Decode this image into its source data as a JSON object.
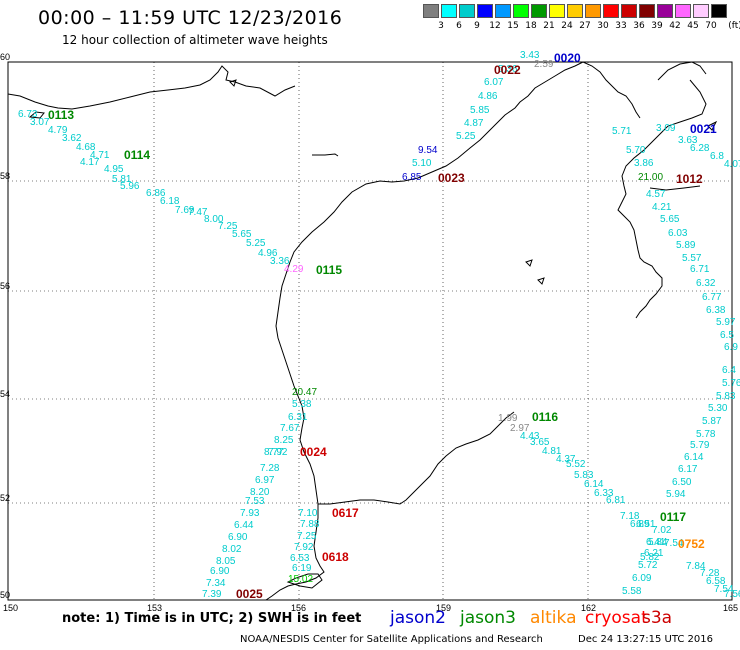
{
  "header": {
    "title": "00:00 – 11:59 UTC 12/23/2016",
    "subtitle": "12 hour collection of altimeter wave heights"
  },
  "scale": {
    "unit": "(ft)",
    "colors": [
      "#7f7f7f",
      "#00ffff",
      "#00cccc",
      "#0000ff",
      "#0099ff",
      "#00ff00",
      "#009900",
      "#ffff00",
      "#ffcc00",
      "#ff9900",
      "#ff0000",
      "#cc0000",
      "#800000",
      "#990099",
      "#ff66ff",
      "#ffccff",
      "#000000"
    ],
    "labels": [
      "3",
      "6",
      "9",
      "12",
      "15",
      "18",
      "21",
      "24",
      "27",
      "30",
      "33",
      "36",
      "39",
      "42",
      "45",
      "70"
    ]
  },
  "axes": {
    "x_ticks": [
      "150",
      "153",
      "156",
      "159",
      "162",
      "165"
    ],
    "y_ticks": [
      "60",
      "58",
      "56",
      "54",
      "52",
      "50"
    ]
  },
  "map": {
    "passes": [
      {
        "id": "0020",
        "color": "#0000cc"
      },
      {
        "id": "0022",
        "color": "#800000"
      },
      {
        "id": "0113",
        "color": "#008800"
      },
      {
        "id": "0114",
        "color": "#008800"
      },
      {
        "id": "0023",
        "color": "#800000"
      },
      {
        "id": "0021",
        "color": "#0000cc"
      },
      {
        "id": "1012",
        "color": "#800000"
      },
      {
        "id": "0115",
        "color": "#008800"
      },
      {
        "id": "0116",
        "color": "#008800"
      },
      {
        "id": "0024",
        "color": "#cc0000"
      },
      {
        "id": "0617",
        "color": "#cc0000"
      },
      {
        "id": "0618",
        "color": "#cc0000"
      },
      {
        "id": "0117",
        "color": "#008800"
      },
      {
        "id": "0752",
        "color": "#ff8800"
      },
      {
        "id": "0025",
        "color": "#800000"
      }
    ],
    "values": [
      {
        "t": "3.43",
        "c": "#00cccc"
      },
      {
        "t": "2.59",
        "c": "#888888"
      },
      {
        "t": "5.36",
        "c": "#00cccc"
      },
      {
        "t": "6.07",
        "c": "#00cccc"
      },
      {
        "t": "4.86",
        "c": "#00cccc"
      },
      {
        "t": "5.85",
        "c": "#00cccc"
      },
      {
        "t": "4.87",
        "c": "#00cccc"
      },
      {
        "t": "5.25",
        "c": "#00cccc"
      },
      {
        "t": "9.54",
        "c": "#0000cc"
      },
      {
        "t": "5.10",
        "c": "#00cccc"
      },
      {
        "t": "6.85",
        "c": "#0000cc"
      },
      {
        "t": "6.73",
        "c": "#00cccc"
      },
      {
        "t": "3.07",
        "c": "#00cccc"
      },
      {
        "t": "4.79",
        "c": "#00cccc"
      },
      {
        "t": "3.62",
        "c": "#00cccc"
      },
      {
        "t": "4.68",
        "c": "#00cccc"
      },
      {
        "t": "4.71",
        "c": "#00cccc"
      },
      {
        "t": "4.17",
        "c": "#00cccc"
      },
      {
        "t": "4.95",
        "c": "#00cccc"
      },
      {
        "t": "5.81",
        "c": "#00cccc"
      },
      {
        "t": "5.96",
        "c": "#00cccc"
      },
      {
        "t": "6.86",
        "c": "#00cccc"
      },
      {
        "t": "6.18",
        "c": "#00cccc"
      },
      {
        "t": "7.69",
        "c": "#00cccc"
      },
      {
        "t": "7.47",
        "c": "#00cccc"
      },
      {
        "t": "8.00",
        "c": "#00cccc"
      },
      {
        "t": "7.25",
        "c": "#00cccc"
      },
      {
        "t": "5.65",
        "c": "#00cccc"
      },
      {
        "t": "5.25",
        "c": "#00cccc"
      },
      {
        "t": "4.96",
        "c": "#00cccc"
      },
      {
        "t": "3.36",
        "c": "#00cccc"
      },
      {
        "t": "4.29",
        "c": "#ff66ff"
      },
      {
        "t": "5.71",
        "c": "#00cccc"
      },
      {
        "t": "3.09",
        "c": "#00cccc"
      },
      {
        "t": "3.63",
        "c": "#00cccc"
      },
      {
        "t": "5.70",
        "c": "#00cccc"
      },
      {
        "t": "6.28",
        "c": "#00cccc"
      },
      {
        "t": "6.8",
        "c": "#00cccc"
      },
      {
        "t": "4.07",
        "c": "#00cccc"
      },
      {
        "t": "3.86",
        "c": "#00cccc"
      },
      {
        "t": "21.00",
        "c": "#008800"
      },
      {
        "t": "4.57",
        "c": "#00cccc"
      },
      {
        "t": "4.21",
        "c": "#00cccc"
      },
      {
        "t": "5.65",
        "c": "#00cccc"
      },
      {
        "t": "6.03",
        "c": "#00cccc"
      },
      {
        "t": "5.89",
        "c": "#00cccc"
      },
      {
        "t": "5.57",
        "c": "#00cccc"
      },
      {
        "t": "6.71",
        "c": "#00cccc"
      },
      {
        "t": "6.32",
        "c": "#00cccc"
      },
      {
        "t": "6.77",
        "c": "#00cccc"
      },
      {
        "t": "6.38",
        "c": "#00cccc"
      },
      {
        "t": "5.97",
        "c": "#00cccc"
      },
      {
        "t": "6.5",
        "c": "#00cccc"
      },
      {
        "t": "6.9",
        "c": "#00cccc"
      },
      {
        "t": "6.4",
        "c": "#00cccc"
      },
      {
        "t": "5.76",
        "c": "#00cccc"
      },
      {
        "t": "5.83",
        "c": "#00cccc"
      },
      {
        "t": "5.30",
        "c": "#00cccc"
      },
      {
        "t": "5.87",
        "c": "#00cccc"
      },
      {
        "t": "5.78",
        "c": "#00cccc"
      },
      {
        "t": "5.79",
        "c": "#00cccc"
      },
      {
        "t": "6.14",
        "c": "#00cccc"
      },
      {
        "t": "6.17",
        "c": "#00cccc"
      },
      {
        "t": "6.50",
        "c": "#00cccc"
      },
      {
        "t": "5.94",
        "c": "#00cccc"
      },
      {
        "t": "20.47",
        "c": "#008800"
      },
      {
        "t": "5.38",
        "c": "#00cccc"
      },
      {
        "t": "6.31",
        "c": "#00cccc"
      },
      {
        "t": "7.67",
        "c": "#00cccc"
      },
      {
        "t": "8.25",
        "c": "#00cccc"
      },
      {
        "t": "7.92",
        "c": "#00cccc"
      },
      {
        "t": "8.77",
        "c": "#00cccc"
      },
      {
        "t": "7.28",
        "c": "#00cccc"
      },
      {
        "t": "6.97",
        "c": "#00cccc"
      },
      {
        "t": "8.20",
        "c": "#00cccc"
      },
      {
        "t": "7.53",
        "c": "#00cccc"
      },
      {
        "t": "7.93",
        "c": "#00cccc"
      },
      {
        "t": "6.44",
        "c": "#00cccc"
      },
      {
        "t": "6.90",
        "c": "#00cccc"
      },
      {
        "t": "8.02",
        "c": "#00cccc"
      },
      {
        "t": "8.05",
        "c": "#00cccc"
      },
      {
        "t": "6.90",
        "c": "#00cccc"
      },
      {
        "t": "7.34",
        "c": "#00cccc"
      },
      {
        "t": "7.39",
        "c": "#00cccc"
      },
      {
        "t": "7.10",
        "c": "#00cccc"
      },
      {
        "t": "7.88",
        "c": "#00cccc"
      },
      {
        "t": "7.25",
        "c": "#00cccc"
      },
      {
        "t": "7.92",
        "c": "#00cccc"
      },
      {
        "t": "6.53",
        "c": "#00cccc"
      },
      {
        "t": "6.19",
        "c": "#00cccc"
      },
      {
        "t": "15.02",
        "c": "#00cc00"
      },
      {
        "t": "1.99",
        "c": "#888888"
      },
      {
        "t": "2.97",
        "c": "#888888"
      },
      {
        "t": "4.43",
        "c": "#00cccc"
      },
      {
        "t": "3.65",
        "c": "#00cccc"
      },
      {
        "t": "4.81",
        "c": "#00cccc"
      },
      {
        "t": "4.37",
        "c": "#00cccc"
      },
      {
        "t": "5.52",
        "c": "#00cccc"
      },
      {
        "t": "5.83",
        "c": "#00cccc"
      },
      {
        "t": "6.14",
        "c": "#00cccc"
      },
      {
        "t": "6.33",
        "c": "#00cccc"
      },
      {
        "t": "6.81",
        "c": "#00cccc"
      },
      {
        "t": "7.18",
        "c": "#00cccc"
      },
      {
        "t": "6.89",
        "c": "#00cccc"
      },
      {
        "t": "6.51",
        "c": "#00cccc"
      },
      {
        "t": "7.02",
        "c": "#00cccc"
      },
      {
        "t": "6.41",
        "c": "#00cccc"
      },
      {
        "t": "6.21",
        "c": "#00cccc"
      },
      {
        "t": "5.82",
        "c": "#00cccc"
      },
      {
        "t": "5.84",
        "c": "#00cccc"
      },
      {
        "t": "7.54",
        "c": "#00cccc"
      },
      {
        "t": "7.84",
        "c": "#00cccc"
      },
      {
        "t": "7.28",
        "c": "#00cccc"
      },
      {
        "t": "5.72",
        "c": "#00cccc"
      },
      {
        "t": "6.58",
        "c": "#00cccc"
      },
      {
        "t": "6.09",
        "c": "#00cccc"
      },
      {
        "t": "7.54",
        "c": "#00cccc"
      },
      {
        "t": "5.58",
        "c": "#00cccc"
      },
      {
        "t": "7.56",
        "c": "#00cccc"
      }
    ]
  },
  "footer": {
    "note": "note: 1) Time is in UTC; 2) SWH is in feet",
    "legend": [
      {
        "label": "jason2",
        "color": "#0000cc"
      },
      {
        "label": "jason3",
        "color": "#008800"
      },
      {
        "label": "altika",
        "color": "#ff8800"
      },
      {
        "label": "cryosat",
        "color": "#ff0000"
      },
      {
        "label": "s3a",
        "color": "#cc0000"
      }
    ],
    "credit": "NOAA/NESDIS Center for Satellite Applications and Research",
    "timestamp": "Dec 24 13:27:15 UTC 2016"
  }
}
